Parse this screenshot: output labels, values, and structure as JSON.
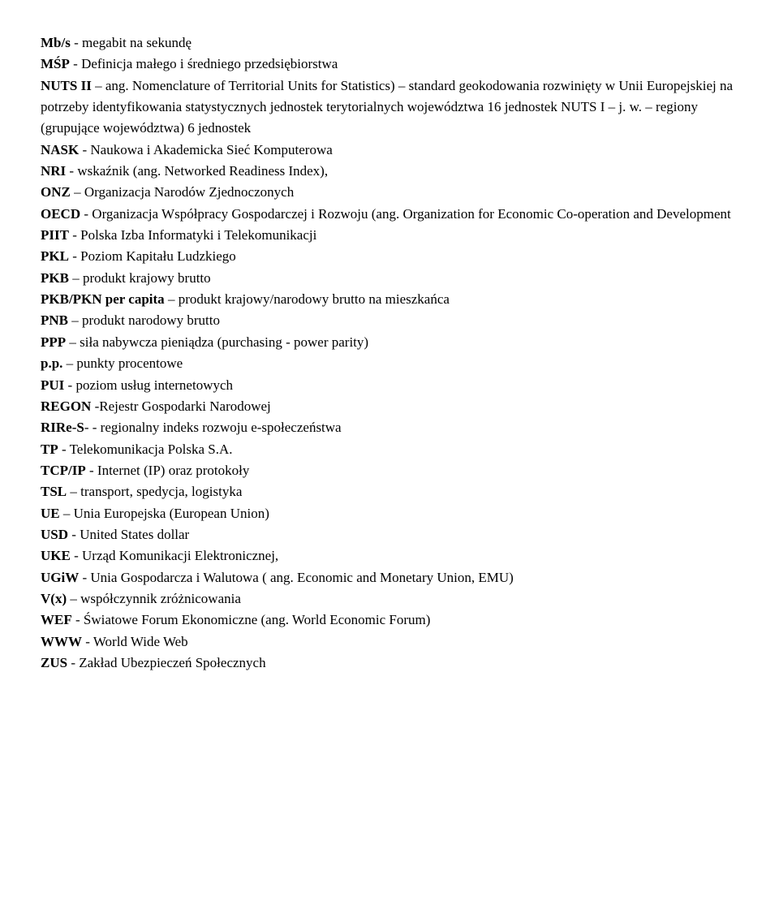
{
  "entries": [
    {
      "abbr": "Mb/s",
      "sep": " - ",
      "desc": "megabit na sekundę"
    },
    {
      "abbr": "MŚP",
      "sep": " - ",
      "desc": "Definicja małego i średniego przedsiębiorstwa"
    },
    {
      "abbr": "NUTS II",
      "sep": " – ",
      "desc": "ang. Nomenclature of Territorial Units for Statistics) – standard geokodowania rozwinięty w Unii Europejskiej na potrzeby identyfikowania statystycznych jednostek terytorialnych województwa 16 jednostek NUTS I – j. w. – regiony (grupujące województwa) 6 jednostek"
    },
    {
      "abbr": "NASK",
      "sep": " - ",
      "desc": "Naukowa i Akademicka Sieć Komputerowa"
    },
    {
      "abbr": "NRI",
      "sep": " - ",
      "desc": "wskaźnik  (ang. Networked Readiness Index),"
    },
    {
      "abbr": "ONZ",
      "sep": " – ",
      "desc": "Organizacja Narodów Zjednoczonych"
    },
    {
      "abbr": "OECD",
      "sep": " - ",
      "desc": "Organizacja Współpracy Gospodarczej i Rozwoju (ang. Organization for Economic Co-operation and Development"
    },
    {
      "abbr": "PIIT",
      "sep": "  - ",
      "desc": "Polska Izba Informatyki i Telekomunikacji"
    },
    {
      "abbr": "PKL",
      "sep": " - ",
      "desc": "Poziom Kapitału Ludzkiego"
    },
    {
      "abbr": "PKB",
      "sep": " – ",
      "desc": "produkt krajowy brutto"
    },
    {
      "abbr": "PKB/PKN per capita",
      "sep": " – ",
      "desc": "produkt krajowy/narodowy brutto na mieszkańca"
    },
    {
      "abbr": "PNB",
      "sep": " – ",
      "desc": "produkt narodowy brutto"
    },
    {
      "abbr": "PPP",
      "sep": " – ",
      "desc": "siła nabywcza pieniądza (purchasing - power parity)"
    },
    {
      "abbr": "p.p.",
      "sep": " – ",
      "desc": "punkty procentowe"
    },
    {
      "abbr": "PUI",
      "sep": " - ",
      "desc": "poziom usług internetowych"
    },
    {
      "abbr": "REGON",
      "sep": " -",
      "desc": "Rejestr Gospodarki Narodowej"
    },
    {
      "abbr": "RIRe-S",
      "sep": "- - ",
      "desc": "regionalny indeks rozwoju e-społeczeństwa"
    },
    {
      "abbr": "TP",
      "sep": " - ",
      "desc": "Telekomunikacja Polska S.A."
    },
    {
      "abbr": "TCP/IP",
      "sep": "  - ",
      "desc": "Internet (IP) oraz protokoły"
    },
    {
      "abbr": "TSL",
      "sep": " – ",
      "desc": "transport, spedycja, logistyka"
    },
    {
      "abbr": "UE",
      "sep": " – ",
      "desc": "Unia Europejska (European Union)"
    },
    {
      "abbr": "USD",
      "sep": " - ",
      "desc": "United States dollar"
    },
    {
      "abbr": "UKE",
      "sep": " - ",
      "desc": "Urząd Komunikacji Elektronicznej,"
    },
    {
      "abbr": "UGiW",
      "sep": " - ",
      "desc": "Unia Gospodarcza i Walutowa ( ang. Economic and Monetary Union, EMU)"
    },
    {
      "abbr": "V(x)",
      "sep": " – ",
      "desc": "współczynnik zróżnicowania"
    },
    {
      "abbr": "WEF",
      "sep": " - ",
      "desc": "Światowe Forum Ekonomiczne (ang. World Economic Forum)"
    },
    {
      "abbr": "WWW",
      "sep": " - ",
      "desc": "World Wide Web"
    },
    {
      "abbr": "ZUS",
      "sep": " - ",
      "desc": "Zakład Ubezpieczeń Społecznych"
    }
  ]
}
